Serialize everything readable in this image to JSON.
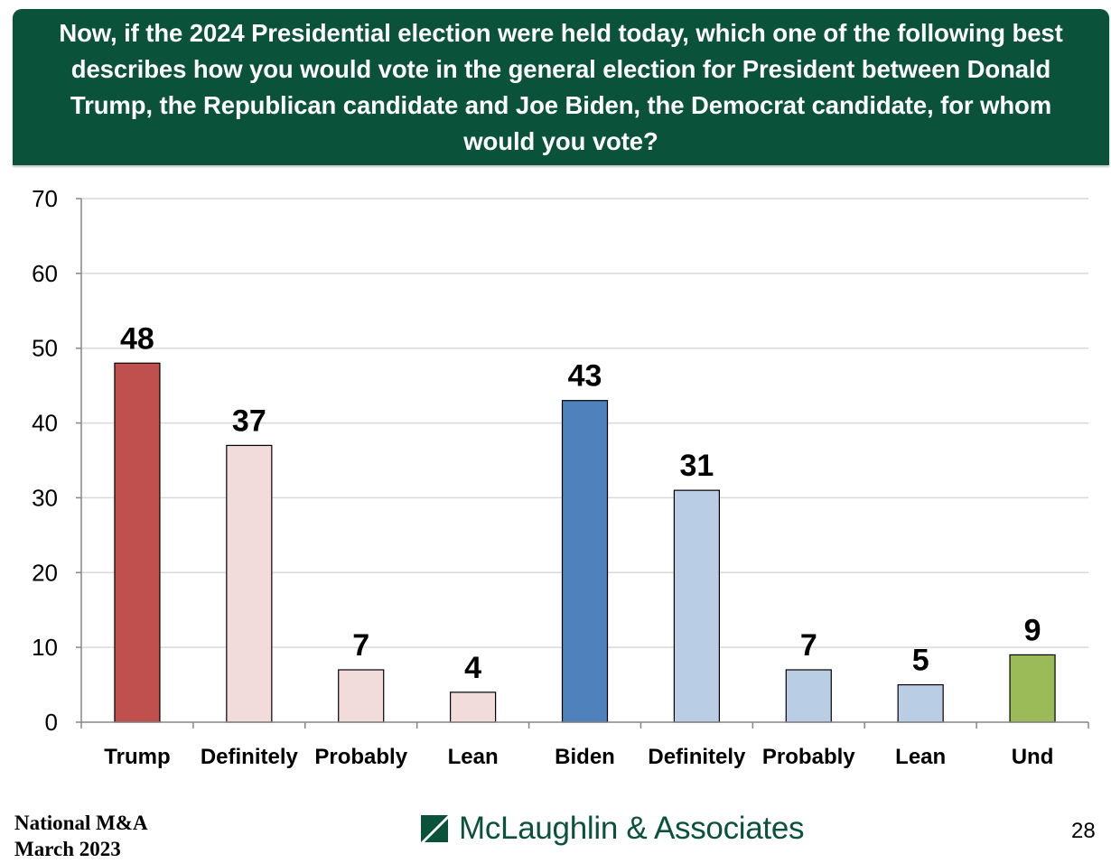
{
  "header": {
    "title": "Now, if the 2024 Presidential election were held today, which one of the following best describes how you would vote in the general election for President between Donald Trump, the Republican candidate and Joe Biden, the Democrat candidate, for whom would you vote?"
  },
  "chart_data": {
    "type": "bar",
    "title": "Now, if the 2024 Presidential election were held today, which one of the following best describes how you would vote in the general election for President between Donald Trump, the Republican candidate and Joe Biden, the Democrat candidate, for whom would you vote?",
    "xlabel": "",
    "ylabel": "",
    "categories": [
      "Trump",
      "Definitely",
      "Probably",
      "Lean",
      "Biden",
      "Definitely",
      "Probably",
      "Lean",
      "Und"
    ],
    "values": [
      48,
      37,
      7,
      4,
      43,
      31,
      7,
      5,
      9
    ],
    "data_labels": [
      "48",
      "37",
      "7",
      "4",
      "43",
      "31",
      "7",
      "5",
      "9"
    ],
    "bar_colors": [
      "#c0504d",
      "#f2dcdb",
      "#f2dcdb",
      "#f2dcdb",
      "#4f81bd",
      "#b9cde5",
      "#b9cde5",
      "#b9cde5",
      "#9bbb59"
    ],
    "ylim": [
      0,
      70
    ],
    "yticks": [
      0,
      10,
      20,
      30,
      40,
      50,
      60,
      70
    ],
    "grid": true,
    "legend": "none"
  },
  "footer": {
    "source_line1": "National M&A",
    "source_line2": "March 2023",
    "logo_text": "McLaughlin & Associates",
    "page_number": "28"
  },
  "colors": {
    "header_bg": "#0b523a",
    "logo_green": "#0b523a",
    "gridline": "#d9d9d9",
    "axis": "#868686"
  }
}
